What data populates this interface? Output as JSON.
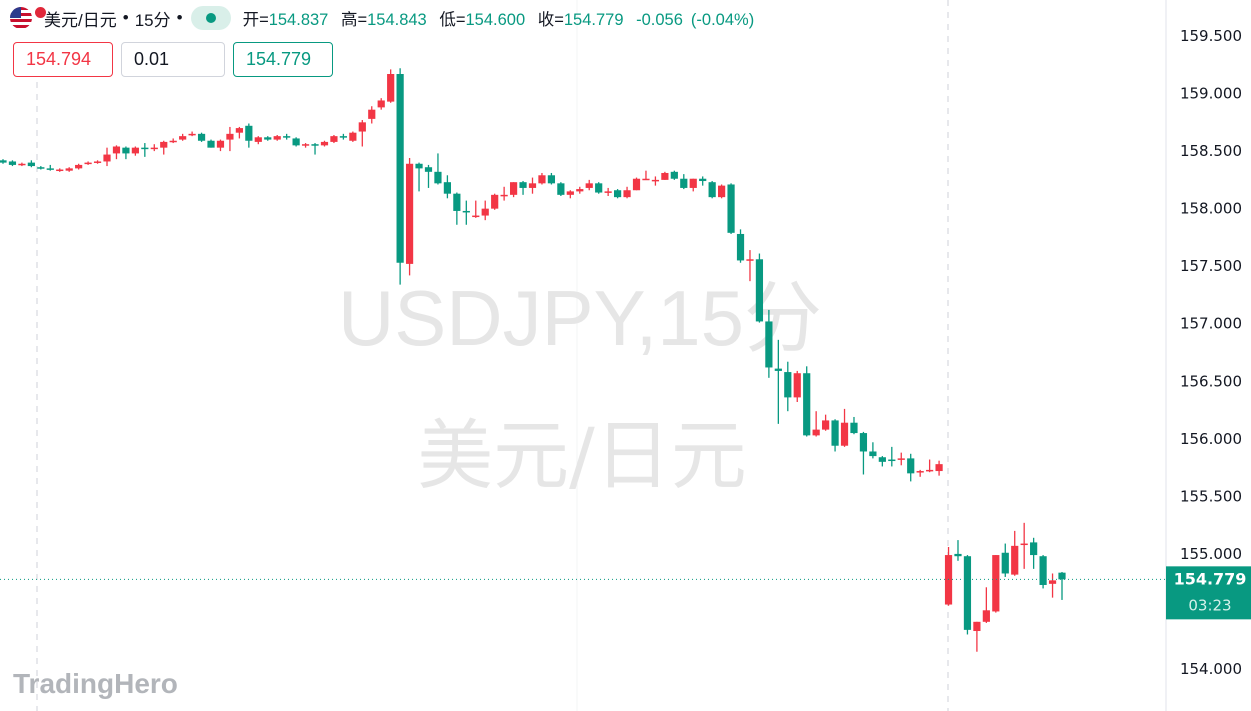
{
  "header": {
    "flag_icon": "us-jp-flag-icon",
    "symbol": "美元/日元",
    "separator": "•",
    "interval": "15分",
    "status": "market-open-dot",
    "ohlc": [
      {
        "label": "开=",
        "value": "154.837"
      },
      {
        "label": "高=",
        "value": "154.843"
      },
      {
        "label": "低=",
        "value": "154.600"
      },
      {
        "label": "收=",
        "value": "154.779"
      }
    ],
    "change": "-0.056",
    "change_pct": "(-0.04%)"
  },
  "trade": {
    "sell": "154.794",
    "quantity": "0.01",
    "buy": "154.779"
  },
  "watermark": {
    "line1": "USDJPY,15分",
    "line2": "美元/日元"
  },
  "logo": "TradingHero",
  "price_label": {
    "price": "154.779",
    "countdown": "03:23"
  },
  "colors": {
    "up": "#f23645",
    "down": "#089981",
    "axis_text": "#131722",
    "watermark": "#e6e6e6"
  },
  "chart_data": {
    "type": "candlestick",
    "symbol": "USDJPY",
    "interval": "15分",
    "up_color_meaning": "red = rising, green = falling",
    "y_ticks": [
      "159.500",
      "159.000",
      "158.500",
      "158.000",
      "157.500",
      "157.000",
      "156.500",
      "156.000",
      "155.500",
      "155.000",
      "154.000"
    ],
    "ylim": [
      153.635,
      159.813
    ],
    "last_price": 154.779,
    "ohlc": [
      [
        158.42,
        158.43,
        158.39,
        158.4
      ],
      [
        158.41,
        158.42,
        158.37,
        158.38
      ],
      [
        158.38,
        158.4,
        158.37,
        158.39
      ],
      [
        158.4,
        158.42,
        158.36,
        158.37
      ],
      [
        158.36,
        158.37,
        158.34,
        158.35
      ],
      [
        158.35,
        158.38,
        158.33,
        158.34
      ],
      [
        158.33,
        158.35,
        158.32,
        158.34
      ],
      [
        158.33,
        158.36,
        158.32,
        158.35
      ],
      [
        158.35,
        158.39,
        158.34,
        158.38
      ],
      [
        158.39,
        158.41,
        158.38,
        158.4
      ],
      [
        158.4,
        158.42,
        158.39,
        158.41
      ],
      [
        158.41,
        158.53,
        158.37,
        158.47
      ],
      [
        158.48,
        158.55,
        158.43,
        158.54
      ],
      [
        158.53,
        158.54,
        158.43,
        158.48
      ],
      [
        158.48,
        158.54,
        158.46,
        158.53
      ],
      [
        158.53,
        158.57,
        158.45,
        158.52
      ],
      [
        158.52,
        158.56,
        158.5,
        158.53
      ],
      [
        158.53,
        158.59,
        158.47,
        158.58
      ],
      [
        158.58,
        158.61,
        158.57,
        158.59
      ],
      [
        158.6,
        158.65,
        158.59,
        158.63
      ],
      [
        158.64,
        158.67,
        158.63,
        158.65
      ],
      [
        158.65,
        158.66,
        158.58,
        158.59
      ],
      [
        158.59,
        158.6,
        158.53,
        158.53
      ],
      [
        158.53,
        158.6,
        158.5,
        158.59
      ],
      [
        158.6,
        158.71,
        158.5,
        158.65
      ],
      [
        158.66,
        158.71,
        158.61,
        158.7
      ],
      [
        158.72,
        158.74,
        158.53,
        158.59
      ],
      [
        158.58,
        158.63,
        158.56,
        158.62
      ],
      [
        158.62,
        158.63,
        158.59,
        158.6
      ],
      [
        158.6,
        158.64,
        158.59,
        158.63
      ],
      [
        158.63,
        158.65,
        158.6,
        158.62
      ],
      [
        158.61,
        158.62,
        158.54,
        158.55
      ],
      [
        158.55,
        158.57,
        158.53,
        158.56
      ],
      [
        158.56,
        158.57,
        158.47,
        158.55
      ],
      [
        158.55,
        158.59,
        158.54,
        158.58
      ],
      [
        158.58,
        158.64,
        158.57,
        158.63
      ],
      [
        158.63,
        158.65,
        158.6,
        158.62
      ],
      [
        158.59,
        158.67,
        158.58,
        158.66
      ],
      [
        158.67,
        158.77,
        158.54,
        158.75
      ],
      [
        158.78,
        158.89,
        158.74,
        158.86
      ],
      [
        158.88,
        158.96,
        158.86,
        158.94
      ],
      [
        158.93,
        159.21,
        158.92,
        159.17
      ],
      [
        159.17,
        159.22,
        157.34,
        157.53
      ],
      [
        157.52,
        158.44,
        157.42,
        158.39
      ],
      [
        158.39,
        158.4,
        158.15,
        158.35
      ],
      [
        158.36,
        158.38,
        158.18,
        158.32
      ],
      [
        158.32,
        158.48,
        158.21,
        158.22
      ],
      [
        158.23,
        158.29,
        158.09,
        158.13
      ],
      [
        158.13,
        158.14,
        157.86,
        157.98
      ],
      [
        157.98,
        158.07,
        157.86,
        157.97
      ],
      [
        157.93,
        158.07,
        157.92,
        157.94
      ],
      [
        157.94,
        158.07,
        157.9,
        158.0
      ],
      [
        158.0,
        158.13,
        157.99,
        158.12
      ],
      [
        158.11,
        158.19,
        158.07,
        158.12
      ],
      [
        158.12,
        158.23,
        158.1,
        158.23
      ],
      [
        158.23,
        158.24,
        158.12,
        158.18
      ],
      [
        158.18,
        158.27,
        158.13,
        158.22
      ],
      [
        158.22,
        158.31,
        158.21,
        158.29
      ],
      [
        158.29,
        158.31,
        158.21,
        158.22
      ],
      [
        158.22,
        158.23,
        158.11,
        158.12
      ],
      [
        158.12,
        158.16,
        158.09,
        158.15
      ],
      [
        158.15,
        158.19,
        158.13,
        158.17
      ],
      [
        158.18,
        158.25,
        158.16,
        158.22
      ],
      [
        158.22,
        158.23,
        158.13,
        158.14
      ],
      [
        158.14,
        158.18,
        158.11,
        158.15
      ],
      [
        158.16,
        158.17,
        158.09,
        158.1
      ],
      [
        158.1,
        158.19,
        158.09,
        158.16
      ],
      [
        158.16,
        158.27,
        158.16,
        158.26
      ],
      [
        158.26,
        158.33,
        158.25,
        158.26
      ],
      [
        158.24,
        158.28,
        158.2,
        158.25
      ],
      [
        158.25,
        158.32,
        158.25,
        158.31
      ],
      [
        158.32,
        158.33,
        158.25,
        158.26
      ],
      [
        158.26,
        158.3,
        158.17,
        158.18
      ],
      [
        158.18,
        158.26,
        158.15,
        158.26
      ],
      [
        158.26,
        158.28,
        158.2,
        158.24
      ],
      [
        158.23,
        158.24,
        158.09,
        158.1
      ],
      [
        158.1,
        158.21,
        158.09,
        158.2
      ],
      [
        158.21,
        158.22,
        157.78,
        157.79
      ],
      [
        157.78,
        157.82,
        157.53,
        157.55
      ],
      [
        157.55,
        157.64,
        157.37,
        157.56
      ],
      [
        157.56,
        157.61,
        157.01,
        157.02
      ],
      [
        157.02,
        157.12,
        156.53,
        156.62
      ],
      [
        156.61,
        156.86,
        156.13,
        156.59
      ],
      [
        156.58,
        156.67,
        156.24,
        156.36
      ],
      [
        156.36,
        156.59,
        156.32,
        156.57
      ],
      [
        156.57,
        156.63,
        156.02,
        156.03
      ],
      [
        156.03,
        156.24,
        156.02,
        156.08
      ],
      [
        156.08,
        156.21,
        156.07,
        156.16
      ],
      [
        156.16,
        156.17,
        155.89,
        155.94
      ],
      [
        155.94,
        156.26,
        155.93,
        156.14
      ],
      [
        156.14,
        156.19,
        156.04,
        156.05
      ],
      [
        156.05,
        156.06,
        155.69,
        155.89
      ],
      [
        155.89,
        155.97,
        155.83,
        155.85
      ],
      [
        155.84,
        155.85,
        155.76,
        155.8
      ],
      [
        155.82,
        155.93,
        155.76,
        155.81
      ],
      [
        155.82,
        155.88,
        155.77,
        155.83
      ],
      [
        155.83,
        155.87,
        155.63,
        155.7
      ],
      [
        155.71,
        155.73,
        155.67,
        155.72
      ],
      [
        155.72,
        155.82,
        155.71,
        155.73
      ],
      [
        155.72,
        155.81,
        155.68,
        155.78
      ],
      [
        154.56,
        155.06,
        154.55,
        154.99
      ],
      [
        155.0,
        155.12,
        154.94,
        154.98
      ],
      [
        154.98,
        154.99,
        154.3,
        154.34
      ],
      [
        154.33,
        154.41,
        154.15,
        154.41
      ],
      [
        154.41,
        154.71,
        154.4,
        154.51
      ],
      [
        154.5,
        154.99,
        154.49,
        154.99
      ],
      [
        155.01,
        155.09,
        154.8,
        154.83
      ],
      [
        154.82,
        155.2,
        154.81,
        155.07
      ],
      [
        155.08,
        155.27,
        154.87,
        155.09
      ],
      [
        155.1,
        155.14,
        154.87,
        154.99
      ],
      [
        154.98,
        154.99,
        154.7,
        154.73
      ],
      [
        154.74,
        154.83,
        154.62,
        154.77
      ],
      [
        154.837,
        154.843,
        154.6,
        154.779
      ]
    ]
  }
}
